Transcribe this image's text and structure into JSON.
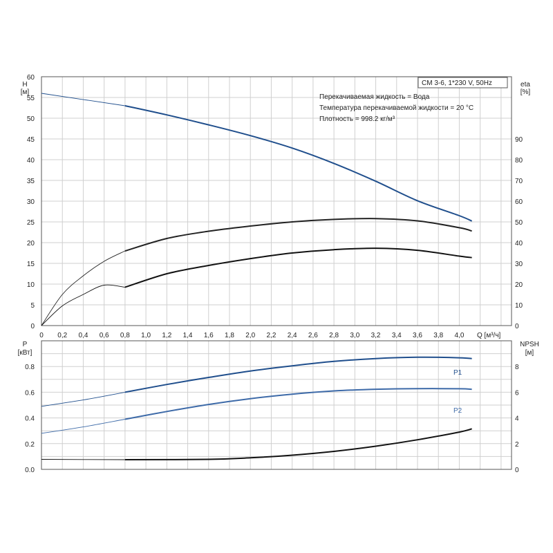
{
  "legend": {
    "model": "CM 3-6, 1*230 V, 50Hz",
    "liquid": "Перекачиваемая жидкость = Вода",
    "temperature": "Температура перекачиваемой жидкости = 20 °C",
    "density": "Плотность = 998.2 кг/м³"
  },
  "chart_data": [
    {
      "type": "line",
      "panel": "top",
      "xlabel": "Q [м³/ч]",
      "xticks": [
        "0",
        "0,2",
        "0,4",
        "0,6",
        "0,8",
        "1,0",
        "1,2",
        "1,4",
        "1,6",
        "1,8",
        "2,0",
        "2,2",
        "2,4",
        "2,6",
        "2,8",
        "3,0",
        "3,2",
        "3,4",
        "3,6",
        "3,8",
        "4,0"
      ],
      "xlim": [
        0,
        4.5
      ],
      "ylabel_left": "H",
      "ylabel_left_unit": "[м]",
      "ylim_left": [
        0,
        60
      ],
      "yticks_left": [
        "0",
        "5",
        "10",
        "15",
        "20",
        "25",
        "30",
        "35",
        "40",
        "45",
        "50",
        "55",
        "60"
      ],
      "ylabel_right": "eta",
      "ylabel_right_unit": "[%]",
      "ylim_right": [
        0,
        120
      ],
      "yticks_right": [
        "0",
        "10",
        "20",
        "30",
        "40",
        "50",
        "60",
        "70",
        "80",
        "90"
      ],
      "grid": true,
      "series": [
        {
          "axis": "left",
          "color": "#1f4e8c",
          "x": [
            0,
            0.8,
            1.2,
            1.6,
            2.0,
            2.4,
            2.8,
            3.2,
            3.6,
            4.0,
            4.12
          ],
          "y": [
            56,
            53,
            50.8,
            48.4,
            45.8,
            42.8,
            39.1,
            34.8,
            30.1,
            26.5,
            25.2
          ]
        },
        {
          "axis": "right",
          "color": "#222222",
          "x": [
            0,
            0.2,
            0.4,
            0.6,
            0.8,
            1.2,
            1.6,
            2.0,
            2.4,
            2.8,
            3.2,
            3.6,
            4.0,
            4.12
          ],
          "y": [
            0,
            15,
            24,
            31,
            36,
            42,
            45.5,
            48,
            50,
            51.2,
            51.6,
            50.5,
            47.2,
            45.6
          ]
        },
        {
          "axis": "right",
          "color": "#111111",
          "x": [
            0,
            0.2,
            0.4,
            0.6,
            0.8,
            1.2,
            1.6,
            2.0,
            2.4,
            2.8,
            3.2,
            3.6,
            4.0,
            4.12
          ],
          "y": [
            0,
            9.5,
            15,
            19.5,
            18.5,
            25,
            29,
            32.3,
            35,
            36.6,
            37.3,
            36.3,
            33.5,
            32.8
          ]
        }
      ]
    },
    {
      "type": "line",
      "panel": "bottom",
      "ylabel_left": "P",
      "ylabel_left_unit": "[кВт]",
      "ylim_left": [
        0,
        1.0
      ],
      "yticks_left": [
        "0.0",
        "0.2",
        "0.4",
        "0.6",
        "0.8"
      ],
      "ylabel_right": "NPSH",
      "ylabel_right_unit": "[м]",
      "ylim_right": [
        0,
        10
      ],
      "yticks_right": [
        "0",
        "2",
        "4",
        "6",
        "8"
      ],
      "xlim": [
        0,
        4.5
      ],
      "grid": true,
      "series": [
        {
          "name": "P1",
          "axis": "left",
          "color": "#1f4e8c",
          "x": [
            0,
            0.4,
            0.8,
            1.2,
            1.6,
            2.0,
            2.4,
            2.8,
            3.2,
            3.6,
            4.0,
            4.12
          ],
          "y": [
            0.49,
            0.54,
            0.6,
            0.66,
            0.715,
            0.765,
            0.805,
            0.84,
            0.862,
            0.872,
            0.868,
            0.862
          ]
        },
        {
          "name": "P2",
          "axis": "left",
          "color": "#3d6aa8",
          "x": [
            0,
            0.4,
            0.8,
            1.2,
            1.6,
            2.0,
            2.4,
            2.8,
            3.2,
            3.6,
            4.0,
            4.12
          ],
          "y": [
            0.28,
            0.33,
            0.39,
            0.45,
            0.505,
            0.55,
            0.585,
            0.61,
            0.623,
            0.628,
            0.627,
            0.623
          ]
        },
        {
          "axis": "right",
          "color": "#111111",
          "x": [
            0,
            0.8,
            1.6,
            2.0,
            2.4,
            2.8,
            3.2,
            3.6,
            4.0,
            4.12
          ],
          "y": [
            0.78,
            0.75,
            0.78,
            0.9,
            1.1,
            1.4,
            1.8,
            2.3,
            2.9,
            3.15
          ]
        }
      ]
    }
  ]
}
